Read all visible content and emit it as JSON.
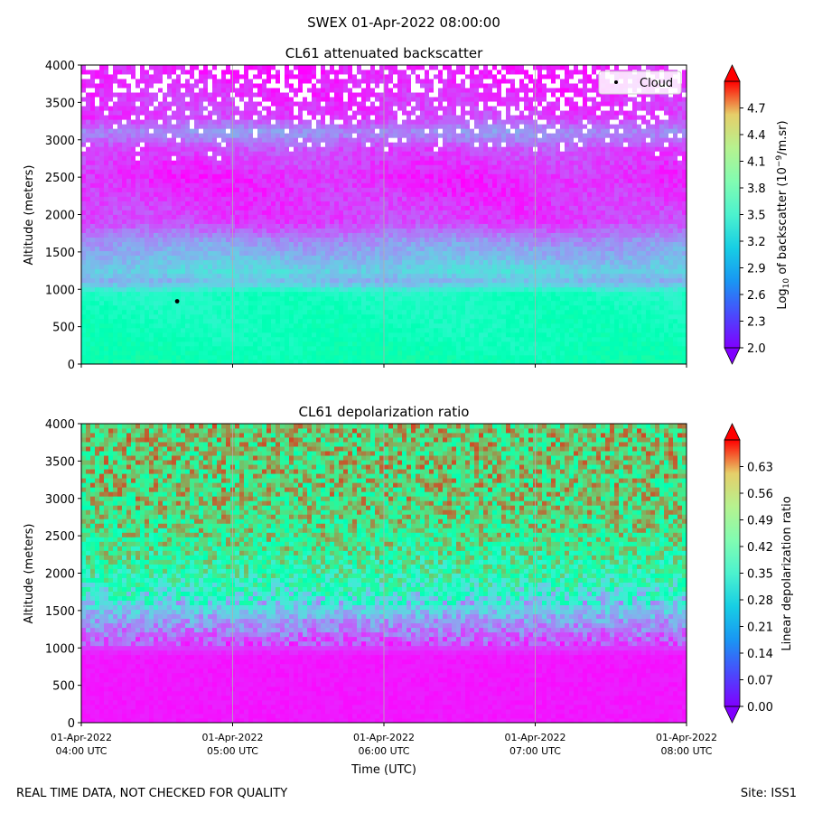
{
  "figure": {
    "suptitle": "SWEX 01-Apr-2022 08:00:00",
    "footer_left": "REAL TIME DATA, NOT CHECKED FOR QUALITY",
    "footer_right": "Site: ISS1"
  },
  "chart_data": [
    {
      "type": "heatmap",
      "title": "CL61 attenuated backscatter",
      "ylabel": "Altitude (meters)",
      "xlabel": "",
      "ylim": [
        0,
        4000
      ],
      "yticks": [
        0,
        500,
        1000,
        1500,
        2000,
        2500,
        3000,
        3500,
        4000
      ],
      "xlim": [
        "01-Apr-2022 04:00 UTC",
        "01-Apr-2022 08:00 UTC"
      ],
      "grid": "vertical",
      "colormap": "rainbow",
      "colorbar": {
        "label_base": "Log",
        "label_sub": "10",
        "label_mid": " of backscatter (10",
        "label_sup": "−9",
        "label_end": "/m.sr)",
        "min": 2.0,
        "max": 5.0,
        "ticks": [
          "2.0",
          "2.3",
          "2.6",
          "2.9",
          "3.2",
          "3.5",
          "3.8",
          "4.1",
          "4.4",
          "4.7"
        ],
        "extend": "both"
      },
      "legend": {
        "label": "Cloud",
        "position": "top-right"
      },
      "cloud_points": [
        {
          "time": "01-Apr-2022 04:38 UTC",
          "altitude": 840
        }
      ],
      "altitude_profile": [
        {
          "altitude": 0,
          "value": 3.55
        },
        {
          "altitude": 300,
          "value": 3.45
        },
        {
          "altitude": 700,
          "value": 3.4
        },
        {
          "altitude": 950,
          "value": 3.35
        },
        {
          "altitude": 1100,
          "value": 2.75
        },
        {
          "altitude": 1250,
          "value": 2.95
        },
        {
          "altitude": 1450,
          "value": 2.75
        },
        {
          "altitude": 1650,
          "value": 2.6
        },
        {
          "altitude": 1900,
          "value": 2.25
        },
        {
          "altitude": 2500,
          "value": 2.15
        },
        {
          "altitude": 2900,
          "value": 2.3
        },
        {
          "altitude": 3100,
          "value": 2.6
        },
        {
          "altitude": 3300,
          "value": 2.25
        },
        {
          "altitude": 4000,
          "value": 2.1
        }
      ]
    },
    {
      "type": "heatmap",
      "title": "CL61 depolarization ratio",
      "ylabel": "Altitude (meters)",
      "xlabel": "Time (UTC)",
      "ylim": [
        0,
        4000
      ],
      "yticks": [
        0,
        500,
        1000,
        1500,
        2000,
        2500,
        3000,
        3500,
        4000
      ],
      "xticks": [
        {
          "line1": "01-Apr-2022",
          "line2": "04:00 UTC"
        },
        {
          "line1": "01-Apr-2022",
          "line2": "05:00 UTC"
        },
        {
          "line1": "01-Apr-2022",
          "line2": "06:00 UTC"
        },
        {
          "line1": "01-Apr-2022",
          "line2": "07:00 UTC"
        },
        {
          "line1": "01-Apr-2022",
          "line2": "08:00 UTC"
        }
      ],
      "grid": "vertical",
      "colormap": "rainbow",
      "colorbar": {
        "label": "Linear depolarization ratio",
        "min": 0.0,
        "max": 0.7,
        "ticks": [
          "0.00",
          "0.07",
          "0.14",
          "0.21",
          "0.28",
          "0.35",
          "0.42",
          "0.49",
          "0.56",
          "0.63"
        ],
        "extend": "both"
      },
      "altitude_profile": [
        {
          "altitude": 0,
          "value": 0.02
        },
        {
          "altitude": 900,
          "value": 0.02
        },
        {
          "altitude": 1100,
          "value": 0.08
        },
        {
          "altitude": 1400,
          "value": 0.16
        },
        {
          "altitude": 1700,
          "value": 0.28
        },
        {
          "altitude": 2000,
          "value": 0.38
        },
        {
          "altitude": 2500,
          "value": 0.45
        },
        {
          "altitude": 3000,
          "value": 0.48
        },
        {
          "altitude": 4000,
          "value": 0.5
        }
      ]
    }
  ]
}
